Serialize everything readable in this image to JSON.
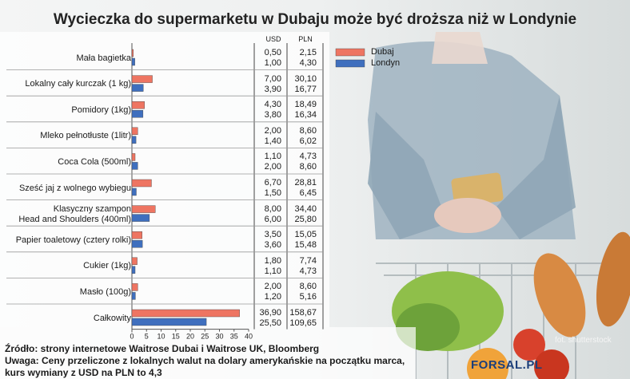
{
  "title": "Wycieczka do supermarketu w Dubaju może być droższa niż w Londynie",
  "columns": {
    "usd": "USD",
    "pln": "PLN"
  },
  "legend": [
    {
      "name": "Dubaj",
      "color": "#ee7562"
    },
    {
      "name": "Londyn",
      "color": "#3f6fbe"
    }
  ],
  "rows": [
    {
      "label": "Mała bagietka",
      "usd": [
        "0,50",
        "1,00"
      ],
      "pln": [
        "2,15",
        "4,30"
      ]
    },
    {
      "label": "Lokalny cały kurczak (1 kg)",
      "usd": [
        "7,00",
        "3,90"
      ],
      "pln": [
        "30,10",
        "16,77"
      ]
    },
    {
      "label": "Pomidory (1kg)",
      "usd": [
        "4,30",
        "3,80"
      ],
      "pln": [
        "18,49",
        "16,34"
      ]
    },
    {
      "label": "Mleko pełnotłuste (1litr)",
      "usd": [
        "2,00",
        "1,40"
      ],
      "pln": [
        "8,60",
        "6,02"
      ]
    },
    {
      "label": "Coca Cola (500ml)",
      "usd": [
        "1,10",
        "2,00"
      ],
      "pln": [
        "4,73",
        "8,60"
      ]
    },
    {
      "label": "Sześć jaj z wolnego wybiegu",
      "usd": [
        "6,70",
        "1,50"
      ],
      "pln": [
        "28,81",
        "6,45"
      ]
    },
    {
      "label": "Klasyczny szampon\nHead and Shoulders (400ml)",
      "usd": [
        "8,00",
        "6,00"
      ],
      "pln": [
        "34,40",
        "25,80"
      ]
    },
    {
      "label": "Papier toaletowy (cztery rolki)",
      "usd": [
        "3,50",
        "3,60"
      ],
      "pln": [
        "15,05",
        "15,48"
      ]
    },
    {
      "label": "Cukier (1kg)",
      "usd": [
        "1,80",
        "1,10"
      ],
      "pln": [
        "7,74",
        "4,73"
      ]
    },
    {
      "label": "Masło (100g)",
      "usd": [
        "2,00",
        "1,20"
      ],
      "pln": [
        "8,60",
        "5,16"
      ]
    },
    {
      "label": "Całkowity",
      "usd": [
        "36,90",
        "25,50"
      ],
      "pln": [
        "158,67",
        "109,65"
      ]
    }
  ],
  "chart_data": {
    "type": "bar",
    "orientation": "horizontal",
    "title": "Wycieczka do supermarketu w Dubaju może być droższa niż w Londynie",
    "categories": [
      "Mała bagietka",
      "Lokalny cały kurczak (1 kg)",
      "Pomidory (1kg)",
      "Mleko pełnotłuste (1litr)",
      "Coca Cola (500ml)",
      "Sześć jaj z wolnego wybiegu",
      "Klasyczny szampon Head and Shoulders (400ml)",
      "Papier toaletowy (cztery rolki)",
      "Cukier (1kg)",
      "Masło (100g)",
      "Całkowity"
    ],
    "series": [
      {
        "name": "Dubaj",
        "values": [
          0.5,
          7.0,
          4.3,
          2.0,
          1.1,
          6.7,
          8.0,
          3.5,
          1.8,
          2.0,
          36.9
        ]
      },
      {
        "name": "Londyn",
        "values": [
          1.0,
          3.9,
          3.8,
          1.4,
          2.0,
          1.5,
          6.0,
          3.6,
          1.1,
          1.2,
          25.5
        ]
      }
    ],
    "xlim": [
      0,
      40
    ],
    "xticks": [
      0,
      5,
      10,
      15,
      20,
      25,
      30,
      35,
      40
    ],
    "legend_position": "right"
  },
  "footer": {
    "source": "Źródło: strony internetowe Waitrose Dubai i Waitrose UK, Bloomberg",
    "note": "Uwaga: Ceny przeliczone z lokalnych walut na dolary amerykańskie na początku marca,",
    "rate": "kurs wymiany z USD na PLN to 4,3",
    "photo_credit": "fot. shutterstock",
    "logo": "FORSAL.PL"
  }
}
